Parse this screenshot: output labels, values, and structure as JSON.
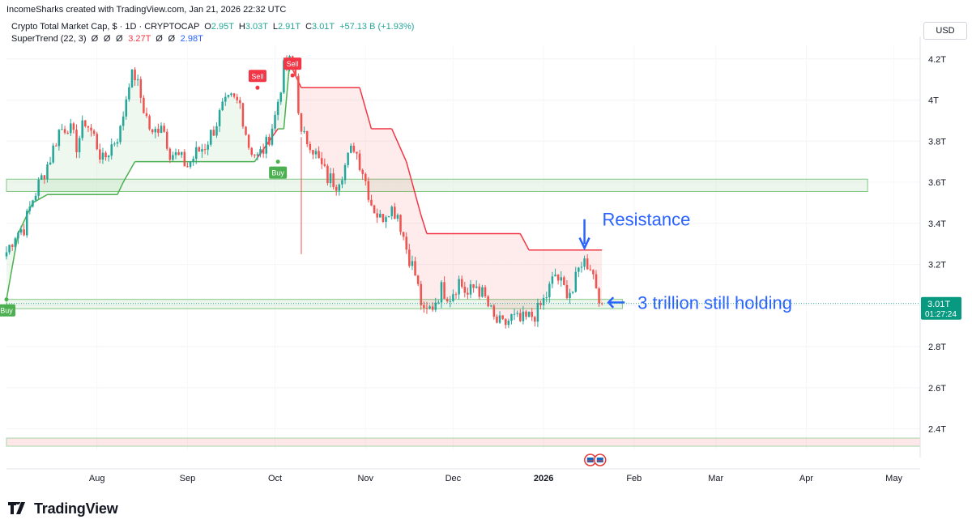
{
  "header": {
    "publisher": "IncomeSharks created with TradingView.com, Jan 21, 2026 22:32 UTC"
  },
  "legend": {
    "symbol": "Crypto Total Market Cap, $ · 1D · CRYPTOCAP",
    "open_label": "O",
    "open": "2.95T",
    "high_label": "H",
    "high": "3.03T",
    "low_label": "L",
    "low": "2.91T",
    "close_label": "C",
    "close": "3.01T",
    "change": "+57.13 B (+1.93%)",
    "indicator": "SuperTrend (22, 3)",
    "indicator_values": [
      "Ø",
      "Ø",
      "Ø",
      "3.27T",
      "Ø",
      "Ø",
      "2.98T"
    ]
  },
  "currency": "USD",
  "price_tag": {
    "value": "3.01T",
    "countdown": "01:27:24"
  },
  "branding": {
    "name": "TradingView"
  },
  "chart_data": {
    "type": "candlestick",
    "title": "Crypto Total Market Cap, $ · 1D · CRYPTOCAP",
    "ylabel": "",
    "xlabel": "",
    "ylim": [
      2.3,
      4.27
    ],
    "y_unit": "T",
    "y_ticks": [
      "2.4T",
      "2.6T",
      "2.8T",
      "3T",
      "3.2T",
      "3.4T",
      "3.6T",
      "3.8T",
      "4T",
      "4.2T"
    ],
    "x_ticks": [
      "Aug",
      "Sep",
      "Oct",
      "Nov",
      "Dec",
      "2026",
      "Feb",
      "Mar",
      "Apr",
      "May"
    ],
    "x_range": [
      "2025-07-01",
      "2026-05-10"
    ],
    "colors": {
      "up": "#26a69a",
      "down": "#ef5350",
      "supertrend_up": "#4caf50",
      "supertrend_down": "#f23645",
      "zone": "#c8e6c9",
      "annotation": "#2962ff"
    },
    "close_series": [
      [
        "2025-07-01",
        3.26
      ],
      [
        "2025-07-04",
        3.35
      ],
      [
        "2025-07-07",
        3.38
      ],
      [
        "2025-07-10",
        3.52
      ],
      [
        "2025-07-13",
        3.62
      ],
      [
        "2025-07-16",
        3.72
      ],
      [
        "2025-07-19",
        3.85
      ],
      [
        "2025-07-22",
        3.88
      ],
      [
        "2025-07-25",
        3.78
      ],
      [
        "2025-07-28",
        3.9
      ],
      [
        "2025-07-31",
        3.82
      ],
      [
        "2025-08-03",
        3.7
      ],
      [
        "2025-08-06",
        3.78
      ],
      [
        "2025-08-09",
        3.85
      ],
      [
        "2025-08-12",
        4.1
      ],
      [
        "2025-08-14",
        4.12
      ],
      [
        "2025-08-17",
        3.96
      ],
      [
        "2025-08-20",
        3.82
      ],
      [
        "2025-08-23",
        3.9
      ],
      [
        "2025-08-26",
        3.75
      ],
      [
        "2025-08-29",
        3.72
      ],
      [
        "2025-09-01",
        3.68
      ],
      [
        "2025-09-04",
        3.74
      ],
      [
        "2025-09-07",
        3.78
      ],
      [
        "2025-09-10",
        3.86
      ],
      [
        "2025-09-13",
        3.96
      ],
      [
        "2025-09-16",
        4.0
      ],
      [
        "2025-09-19",
        3.98
      ],
      [
        "2025-09-22",
        3.78
      ],
      [
        "2025-09-25",
        3.72
      ],
      [
        "2025-09-28",
        3.78
      ],
      [
        "2025-10-01",
        3.92
      ],
      [
        "2025-10-04",
        4.15
      ],
      [
        "2025-10-06",
        4.18
      ],
      [
        "2025-10-08",
        4.12
      ],
      [
        "2025-10-10",
        3.82
      ],
      [
        "2025-10-13",
        3.8
      ],
      [
        "2025-10-16",
        3.7
      ],
      [
        "2025-10-19",
        3.62
      ],
      [
        "2025-10-22",
        3.6
      ],
      [
        "2025-10-25",
        3.68
      ],
      [
        "2025-10-28",
        3.78
      ],
      [
        "2025-10-31",
        3.66
      ],
      [
        "2025-11-03",
        3.5
      ],
      [
        "2025-11-06",
        3.42
      ],
      [
        "2025-11-09",
        3.48
      ],
      [
        "2025-11-12",
        3.45
      ],
      [
        "2025-11-15",
        3.28
      ],
      [
        "2025-11-18",
        3.15
      ],
      [
        "2025-11-21",
        2.95
      ],
      [
        "2025-11-24",
        3.0
      ],
      [
        "2025-11-27",
        3.08
      ],
      [
        "2025-11-30",
        3.05
      ],
      [
        "2025-12-03",
        3.12
      ],
      [
        "2025-12-06",
        3.05
      ],
      [
        "2025-12-09",
        3.1
      ],
      [
        "2025-12-12",
        3.03
      ],
      [
        "2025-12-15",
        2.93
      ],
      [
        "2025-12-18",
        2.9
      ],
      [
        "2025-12-21",
        2.94
      ],
      [
        "2025-12-24",
        2.92
      ],
      [
        "2025-12-27",
        2.94
      ],
      [
        "2025-12-30",
        2.97
      ],
      [
        "2026-01-02",
        3.05
      ],
      [
        "2026-01-05",
        3.15
      ],
      [
        "2026-01-08",
        3.08
      ],
      [
        "2026-01-11",
        3.07
      ],
      [
        "2026-01-14",
        3.22
      ],
      [
        "2026-01-17",
        3.2
      ],
      [
        "2026-01-19",
        3.1
      ],
      [
        "2026-01-21",
        3.01
      ]
    ],
    "supertrend": [
      [
        "2025-07-01",
        3.03
      ],
      [
        "2025-07-05",
        3.35
      ],
      [
        "2025-07-10",
        3.5
      ],
      [
        "2025-07-15",
        3.54
      ],
      [
        "2025-08-08",
        3.54
      ],
      [
        "2025-08-10",
        3.6
      ],
      [
        "2025-08-14",
        3.7
      ],
      [
        "2025-09-24",
        3.7
      ],
      [
        "2025-09-25",
        3.72
      ],
      [
        "2025-10-02",
        3.86
      ],
      [
        "2025-10-04",
        3.86
      ],
      [
        "2025-10-06",
        4.18
      ],
      [
        "2025-10-07",
        4.15
      ],
      [
        "2025-10-10",
        4.06
      ],
      [
        "2025-10-30",
        4.06
      ],
      [
        "2025-11-03",
        3.86
      ],
      [
        "2025-11-10",
        3.86
      ],
      [
        "2025-11-15",
        3.7
      ],
      [
        "2025-11-20",
        3.44
      ],
      [
        "2025-11-22",
        3.35
      ],
      [
        "2025-12-24",
        3.35
      ],
      [
        "2025-12-27",
        3.27
      ],
      [
        "2026-01-21",
        3.27
      ]
    ],
    "signals": [
      {
        "label": "Buy",
        "date": "2025-07-01",
        "price": 3.03
      },
      {
        "label": "Sell",
        "date": "2025-09-25",
        "price": 4.06
      },
      {
        "label": "Buy",
        "date": "2025-10-02",
        "price": 3.7
      },
      {
        "label": "Sell",
        "date": "2025-10-07",
        "price": 4.12
      }
    ],
    "zones": [
      {
        "from": 3.555,
        "to": 3.615,
        "start": "2025-07-01",
        "end": "2026-04-22"
      },
      {
        "from": 2.985,
        "to": 3.03,
        "start": "2025-07-01",
        "end": "2026-01-28"
      }
    ],
    "annotations": [
      "Resistance",
      "3 trillion still holding"
    ]
  }
}
